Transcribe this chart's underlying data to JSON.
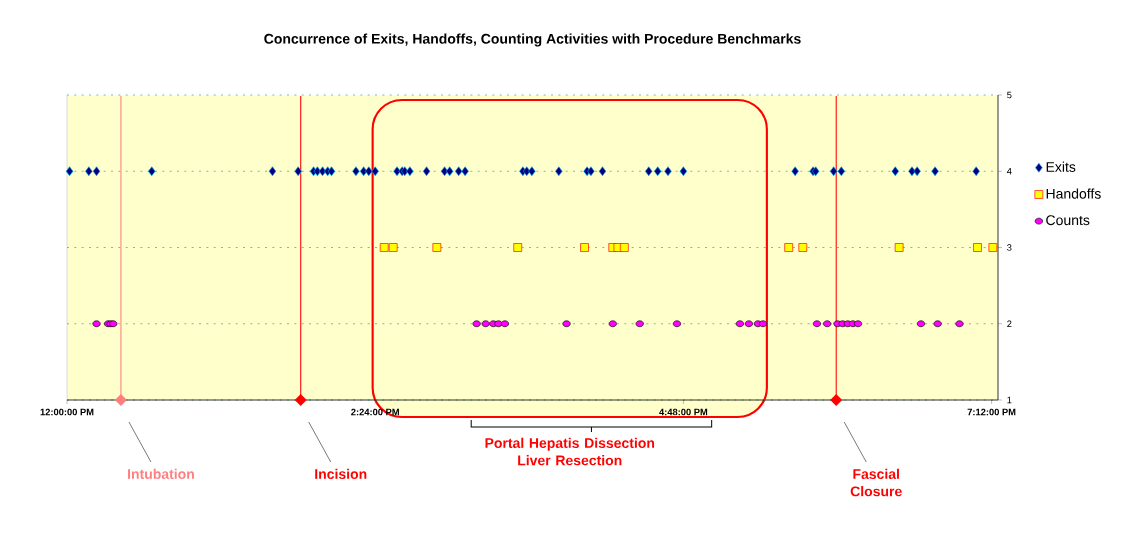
{
  "chart_data": {
    "type": "scatter",
    "title": "Concurrence of Exits, Handoffs, Counting Activities with Procedure Benchmarks",
    "xlim": [
      12,
      19.25
    ],
    "ylim": [
      1,
      5
    ],
    "xticks": [
      {
        "value": 12,
        "label": "12:00:00 PM"
      },
      {
        "value": 14.4,
        "label": "2:24:00 PM"
      },
      {
        "value": 16.8,
        "label": "4:48:00 PM"
      },
      {
        "value": 19.2,
        "label": "7:12:00 PM"
      }
    ],
    "yticks": [
      1,
      2,
      3,
      4,
      5
    ],
    "grid": "y",
    "legend": "right",
    "series": [
      {
        "name": "Exits",
        "color": "#000080",
        "marker": "diamond",
        "x": [
          12.02,
          12.17,
          12.23,
          12.66,
          13.6,
          13.8,
          13.92,
          13.95,
          13.99,
          14.03,
          14.06,
          14.25,
          14.31,
          14.35,
          14.4,
          14.57,
          14.61,
          14.63,
          14.67,
          14.8,
          14.94,
          14.98,
          15.05,
          15.1,
          15.55,
          15.58,
          15.62,
          15.83,
          16.05,
          16.08,
          16.17,
          16.53,
          16.6,
          16.68,
          16.8,
          17.67,
          17.81,
          17.83,
          17.97,
          18.03,
          18.45,
          18.58,
          18.62,
          18.76,
          19.08
        ],
        "values": [
          4,
          4,
          4,
          4,
          4,
          4,
          4,
          4,
          4,
          4,
          4,
          4,
          4,
          4,
          4,
          4,
          4,
          4,
          4,
          4,
          4,
          4,
          4,
          4,
          4,
          4,
          4,
          4,
          4,
          4,
          4,
          4,
          4,
          4,
          4,
          4,
          4,
          4,
          4,
          4,
          4,
          4,
          4,
          4,
          4
        ]
      },
      {
        "name": "Handoffs",
        "color": "#ffff00",
        "marker": "square",
        "x": [
          14.47,
          14.54,
          14.88,
          15.51,
          16.03,
          16.25,
          16.29,
          16.34,
          17.62,
          17.73,
          18.48,
          19.09,
          19.21
        ],
        "values": [
          3,
          3,
          3,
          3,
          3,
          3,
          3,
          3,
          3,
          3,
          3,
          3,
          3
        ]
      },
      {
        "name": "Counts",
        "color": "#ff00ff",
        "marker": "circle",
        "x": [
          12.23,
          12.32,
          12.34,
          12.36,
          15.19,
          15.26,
          15.32,
          15.36,
          15.41,
          15.89,
          16.25,
          16.46,
          16.75,
          17.24,
          17.31,
          17.38,
          17.42,
          17.84,
          17.92,
          18.0,
          18.04,
          18.08,
          18.12,
          18.16,
          18.65,
          18.78,
          18.95
        ],
        "values": [
          2,
          2,
          2,
          2,
          2,
          2,
          2,
          2,
          2,
          2,
          2,
          2,
          2,
          2,
          2,
          2,
          2,
          2,
          2,
          2,
          2,
          2,
          2,
          2,
          2,
          2,
          2
        ]
      }
    ],
    "ref_lines": [
      {
        "axis": "x",
        "value": 12.42,
        "label": "Intubation",
        "color": "#ff7f7f"
      },
      {
        "axis": "x",
        "value": 13.82,
        "label": "Incision",
        "color": "#ff0000"
      },
      {
        "axis": "x",
        "value": 17.99,
        "label": "Fascial Closure",
        "color": "#ff0000"
      }
    ],
    "bands": [
      {
        "axis": "x",
        "from": 14.38,
        "to": 17.45,
        "label": "Portal Hepatis Dissection Liver Resection",
        "color": "#ff0000"
      }
    ]
  }
}
